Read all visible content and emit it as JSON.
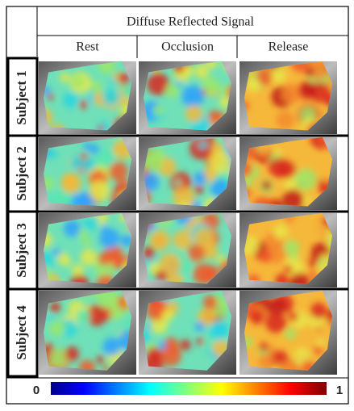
{
  "figure": {
    "header": "Diffuse Reflected Signal",
    "columns": [
      "Rest",
      "Occlusion",
      "Release"
    ],
    "rows": [
      "Subject 1",
      "Subject 2",
      "Subject 3",
      "Subject 4"
    ],
    "colorbar": {
      "min": 0,
      "max": 1
    }
  }
}
